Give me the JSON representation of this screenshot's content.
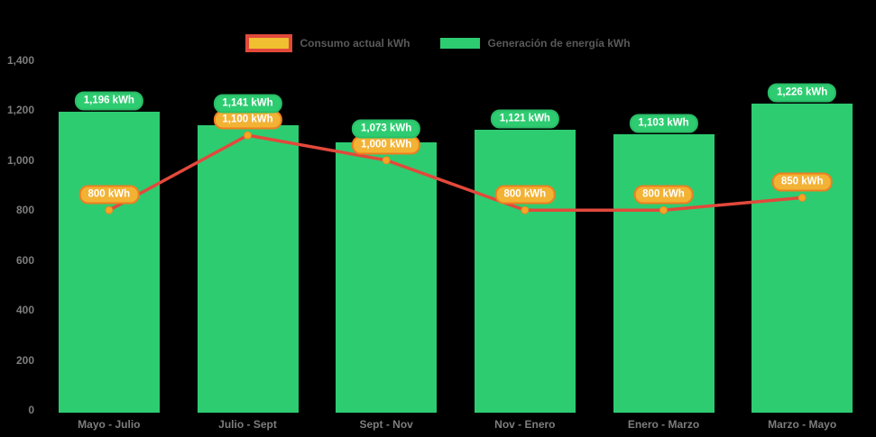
{
  "chart_data": {
    "type": "bar",
    "subtype": "bar-with-line-overlay",
    "categories": [
      "Mayo - Julio",
      "Julio - Sept",
      "Sept - Nov",
      "Nov - Enero",
      "Enero - Marzo",
      "Marzo - Mayo"
    ],
    "series": [
      {
        "name": "Consumo actual kWh",
        "type": "line",
        "values": [
          800,
          1100,
          1000,
          800,
          800,
          850
        ],
        "line_color": "#e2493b",
        "point_fill": "#f5a623",
        "point_stroke": "#e2882a",
        "label_bg": "#f2b234",
        "label_border": "#ee7f21",
        "legend_fill": "#f0c030",
        "legend_border": "#e2493b"
      },
      {
        "name": "Generación de energía kWh",
        "type": "bar",
        "values": [
          1196,
          1141,
          1073,
          1121,
          1103,
          1226
        ],
        "bar_color": "#2ecc71",
        "label_bg": "#2ecc71",
        "label_border": "#29bd67",
        "legend_fill": "#2ecc71",
        "legend_border": "#2ecc71"
      }
    ],
    "value_suffix": " kWh",
    "y_tick_values": [
      0,
      200,
      400,
      600,
      800,
      1000,
      1200,
      1400
    ],
    "ylim": [
      0,
      1400
    ],
    "legend_position": "top",
    "grid": false,
    "background": "#000000",
    "axis_text_color": "#7d7d7d",
    "legend_text_color": "#595959"
  }
}
